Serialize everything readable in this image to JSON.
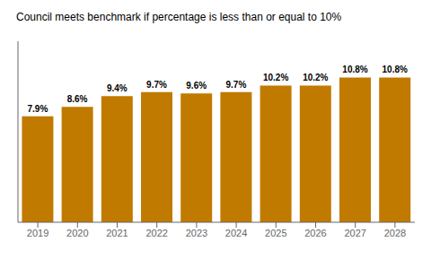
{
  "chart_data": {
    "type": "bar",
    "title": "Council meets benchmark if percentage is less than or equal to 10%",
    "categories": [
      "2019",
      "2020",
      "2021",
      "2022",
      "2023",
      "2024",
      "2025",
      "2026",
      "2027",
      "2028"
    ],
    "values": [
      7.9,
      8.6,
      9.4,
      9.7,
      9.6,
      9.7,
      10.2,
      10.2,
      10.8,
      10.8
    ],
    "value_labels": [
      "7.9%",
      "8.6%",
      "9.4%",
      "9.7%",
      "9.6%",
      "9.7%",
      "10.2%",
      "10.2%",
      "10.8%",
      "10.8%"
    ],
    "data_labels": true,
    "color": "#C17A00",
    "ylim": [
      0,
      13.5
    ],
    "tick_labels": "x",
    "grid": false
  }
}
